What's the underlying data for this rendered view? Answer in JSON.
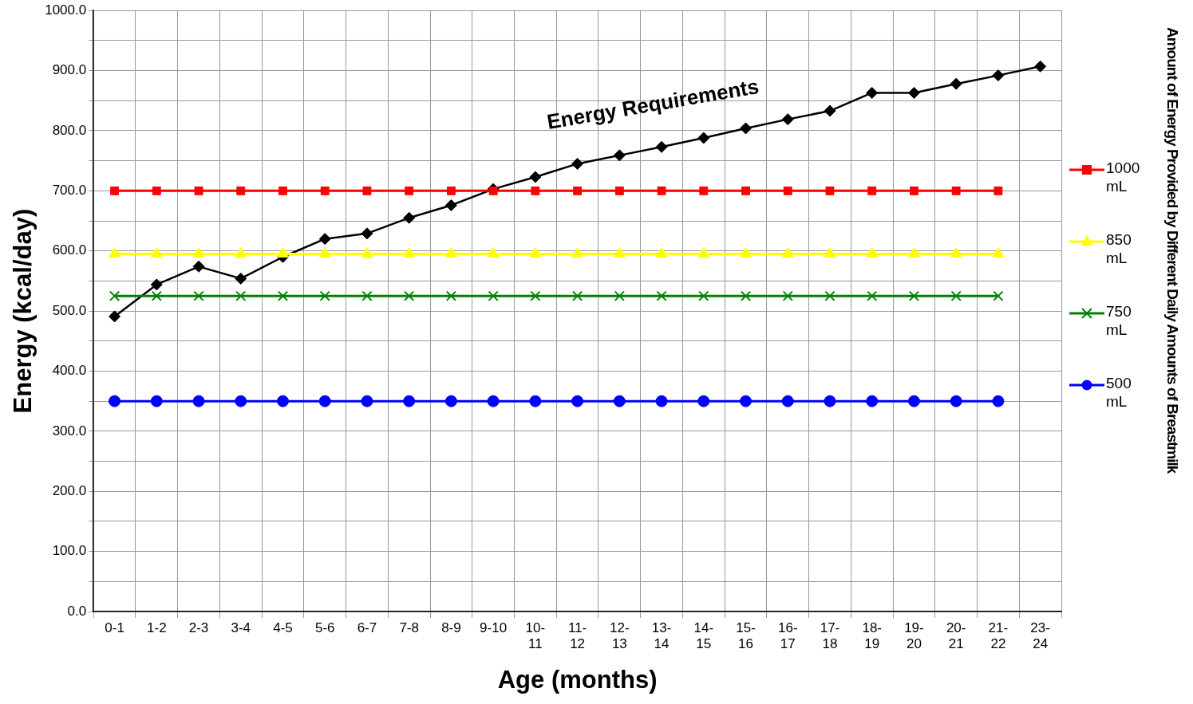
{
  "chart_data": {
    "type": "line",
    "xlabel": "Age (months)",
    "ylabel": "Energy (kcal/day)",
    "legend_title": "Amount of Energy Provided by Different Daily Amounts of Breastmilk",
    "categories": [
      "0-1",
      "1-2",
      "2-3",
      "3-4",
      "4-5",
      "5-6",
      "6-7",
      "7-8",
      "8-9",
      "9-10",
      "10-11",
      "11-12",
      "12-13",
      "13-14",
      "14-15",
      "15-16",
      "16-17",
      "17-18",
      "18-19",
      "19-20",
      "20-21",
      "21-22",
      "23-24"
    ],
    "series": [
      {
        "color": "#000000",
        "marker": "diamond",
        "values": [
          491,
          544,
          574,
          554,
          590,
          620,
          629,
          655,
          676,
          703,
          723,
          745,
          759,
          773,
          788,
          804,
          819,
          833,
          863,
          863,
          878,
          892,
          907
        ]
      },
      {
        "name": "1000 mL",
        "color": "#ff0000",
        "marker": "square",
        "values": [
          700,
          700,
          700,
          700,
          700,
          700,
          700,
          700,
          700,
          700,
          700,
          700,
          700,
          700,
          700,
          700,
          700,
          700,
          700,
          700,
          700,
          700,
          null
        ]
      },
      {
        "name": "850 mL",
        "color": "#ffff00",
        "marker": "triangle",
        "values": [
          595,
          595,
          595,
          595,
          595,
          595,
          595,
          595,
          595,
          595,
          595,
          595,
          595,
          595,
          595,
          595,
          595,
          595,
          595,
          595,
          595,
          595,
          null
        ]
      },
      {
        "name": "750 mL",
        "color": "#008000",
        "marker": "cross",
        "values": [
          525,
          525,
          525,
          525,
          525,
          525,
          525,
          525,
          525,
          525,
          525,
          525,
          525,
          525,
          525,
          525,
          525,
          525,
          525,
          525,
          525,
          525,
          null
        ]
      },
      {
        "name": "500 mL",
        "color": "#0000ff",
        "marker": "circle",
        "values": [
          350,
          350,
          350,
          350,
          350,
          350,
          350,
          350,
          350,
          350,
          350,
          350,
          350,
          350,
          350,
          350,
          350,
          350,
          350,
          350,
          350,
          350,
          null
        ]
      }
    ],
    "annotations": [
      "Energy Requirements"
    ],
    "ylim": [
      0,
      1000
    ],
    "yticks": [
      {
        "value": 0,
        "label": "0.0"
      },
      {
        "value": 50,
        "label": null
      },
      {
        "value": 100,
        "label": "100.0"
      },
      {
        "value": 150,
        "label": null
      },
      {
        "value": 200,
        "label": "200.0"
      },
      {
        "value": 250,
        "label": null
      },
      {
        "value": 300,
        "label": "300.0"
      },
      {
        "value": 350,
        "label": null
      },
      {
        "value": 400,
        "label": "400.0"
      },
      {
        "value": 450,
        "label": null
      },
      {
        "value": 500,
        "label": "500.0"
      },
      {
        "value": 550,
        "label": null
      },
      {
        "value": 600,
        "label": "600.0"
      },
      {
        "value": 650,
        "label": null
      },
      {
        "value": 700,
        "label": "700.0"
      },
      {
        "value": 750,
        "label": null
      },
      {
        "value": 800,
        "label": "800.0"
      },
      {
        "value": 850,
        "label": null
      },
      {
        "value": 900,
        "label": "900.0"
      },
      {
        "value": 950,
        "label": null
      },
      {
        "value": 1000,
        "label": "1000.0"
      }
    ],
    "grid": true,
    "legend": "right",
    "line_style": "solid"
  }
}
